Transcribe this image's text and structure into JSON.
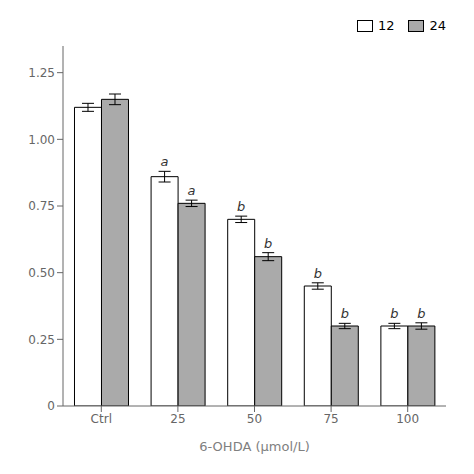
{
  "chart_data": {
    "type": "bar",
    "categories": [
      "Ctrl",
      "25",
      "50",
      "75",
      "100"
    ],
    "xlabel": "6-OHDA (μmol/L)",
    "series": [
      {
        "name": "12",
        "color": "#ffffff",
        "values": [
          1.12,
          0.86,
          0.7,
          0.45,
          0.3
        ],
        "errors": [
          0.015,
          0.02,
          0.012,
          0.012,
          0.01
        ],
        "annotations": [
          null,
          "a",
          "b",
          "b",
          "b"
        ]
      },
      {
        "name": "24",
        "color": "#aaaaaa",
        "values": [
          1.15,
          0.76,
          0.56,
          0.3,
          0.3
        ],
        "errors": [
          0.02,
          0.012,
          0.015,
          0.01,
          0.012
        ],
        "annotations": [
          null,
          "a",
          "b",
          "b",
          "b"
        ]
      }
    ],
    "ylim": [
      0,
      1.35
    ],
    "yticks": [
      0,
      0.25,
      {
        "value": 0.5,
        "label": "0.50"
      },
      0.75,
      {
        "value": 1,
        "label": "1.00"
      },
      1.25
    ],
    "legend": "upper right"
  }
}
